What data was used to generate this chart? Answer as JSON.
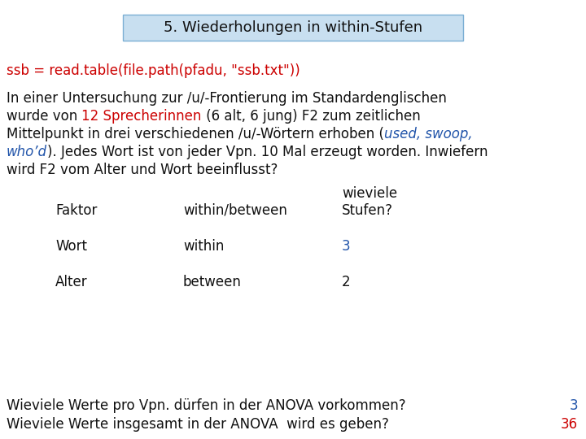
{
  "title": "5. Wiederholungen in within-Stufen",
  "title_box_color": "#c8dff0",
  "title_box_edge": "#7bafd4",
  "background_color": "#ffffff",
  "code_line": "ssb = read.table(file.path(pfadu, \"ssb.txt\"))",
  "code_color": "#cc0000",
  "red_color": "#cc0000",
  "blue_color": "#2255aa",
  "black_color": "#111111",
  "font_size_title": 13,
  "font_size_code": 12,
  "font_size_body": 12,
  "font_size_table": 12,
  "font_size_footer": 12,
  "footer_line1_text": "Wieviele Werte pro Vpn. dürfen in der ANOVA vorkommen?",
  "footer_line1_answer": "3",
  "footer_line1_answer_color": "#2255aa",
  "footer_line2_text": "Wieviele Werte insgesamt in der ANOVA  wird es geben?",
  "footer_line2_answer": "36",
  "footer_line2_answer_color": "#cc0000"
}
